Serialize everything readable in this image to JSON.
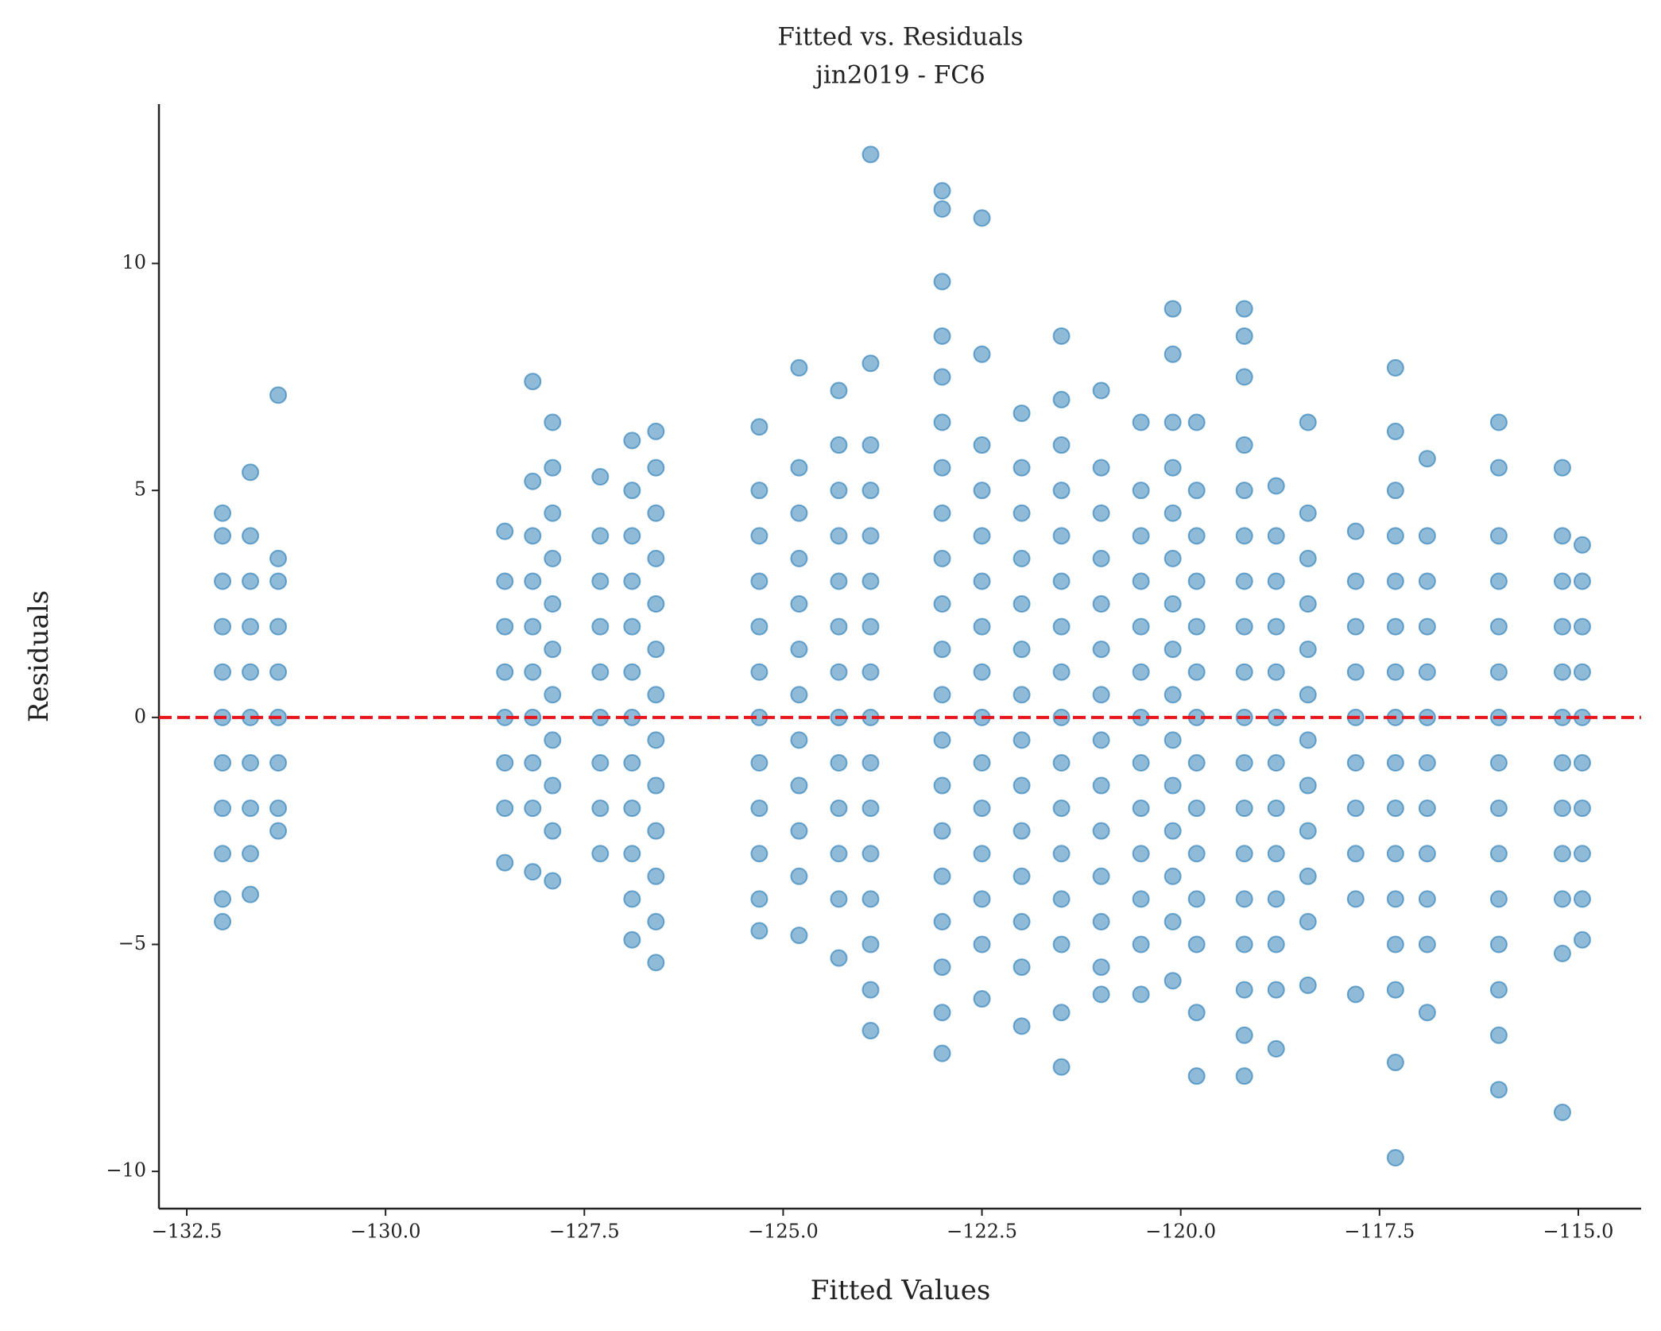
{
  "chart_data": {
    "type": "scatter",
    "title": "Fitted vs. Residuals",
    "subtitle": "jin2019 - FC6",
    "x_label": "Fitted Values",
    "y_label": "Residuals",
    "color": "#1f77b4",
    "xlim": [
      -132.85,
      -114.21
    ],
    "ylim": [
      -10.82,
      13.51
    ],
    "xticks": [
      {
        "value": -132.5,
        "label": "−132.5"
      },
      {
        "value": -130.0,
        "label": "−130.0"
      },
      {
        "value": -127.5,
        "label": "−127.5"
      },
      {
        "value": -125.0,
        "label": "−125.0"
      },
      {
        "value": -122.5,
        "label": "−122.5"
      },
      {
        "value": -120.0,
        "label": "−120.0"
      },
      {
        "value": -117.5,
        "label": "−117.5"
      },
      {
        "value": -115.0,
        "label": "−115.0"
      }
    ],
    "yticks": [
      {
        "value": -10,
        "label": "−10"
      },
      {
        "value": -5,
        "label": "−5"
      },
      0,
      5,
      10
    ],
    "reference_line": {
      "y": 0,
      "color": "#e8141c"
    },
    "x": [
      -132.05,
      -132.05,
      -132.05,
      -132.05,
      -132.05,
      -132.05,
      -132.05,
      -132.05,
      -132.05,
      -132.05,
      -132.05,
      -131.7,
      -131.7,
      -131.7,
      -131.7,
      -131.7,
      -131.7,
      -131.7,
      -131.7,
      -131.7,
      -131.7,
      -131.35,
      -131.35,
      -131.35,
      -131.35,
      -131.35,
      -131.35,
      -131.35,
      -131.35,
      -131.35,
      -128.5,
      -128.5,
      -128.5,
      -128.5,
      -128.5,
      -128.5,
      -128.5,
      -128.5,
      -128.15,
      -128.15,
      -128.15,
      -128.15,
      -128.15,
      -128.15,
      -128.15,
      -128.15,
      -128.15,
      -128.15,
      -127.9,
      -127.9,
      -127.9,
      -127.9,
      -127.9,
      -127.9,
      -127.9,
      -127.9,
      -127.9,
      -127.9,
      -127.9,
      -127.3,
      -127.3,
      -127.3,
      -127.3,
      -127.3,
      -127.3,
      -127.3,
      -127.3,
      -127.3,
      -126.9,
      -126.9,
      -126.9,
      -126.9,
      -126.9,
      -126.9,
      -126.9,
      -126.9,
      -126.9,
      -126.9,
      -126.9,
      -126.9,
      -126.6,
      -126.6,
      -126.6,
      -126.6,
      -126.6,
      -126.6,
      -126.6,
      -126.6,
      -126.6,
      -126.6,
      -126.6,
      -126.6,
      -126.6,
      -125.3,
      -125.3,
      -125.3,
      -125.3,
      -125.3,
      -125.3,
      -125.3,
      -125.3,
      -125.3,
      -125.3,
      -125.3,
      -125.3,
      -124.8,
      -124.8,
      -124.8,
      -124.8,
      -124.8,
      -124.8,
      -124.8,
      -124.8,
      -124.8,
      -124.8,
      -124.8,
      -124.8,
      -124.3,
      -124.3,
      -124.3,
      -124.3,
      -124.3,
      -124.3,
      -124.3,
      -124.3,
      -124.3,
      -124.3,
      -124.3,
      -124.3,
      -124.3,
      -123.9,
      -123.9,
      -123.9,
      -123.9,
      -123.9,
      -123.9,
      -123.9,
      -123.9,
      -123.9,
      -123.9,
      -123.9,
      -123.9,
      -123.9,
      -123.9,
      -123.9,
      -123.9,
      -123.0,
      -123.0,
      -123.0,
      -123.0,
      -123.0,
      -123.0,
      -123.0,
      -123.0,
      -123.0,
      -123.0,
      -123.0,
      -123.0,
      -123.0,
      -123.0,
      -123.0,
      -123.0,
      -123.0,
      -123.0,
      -123.0,
      -123.0,
      -122.5,
      -122.5,
      -122.5,
      -122.5,
      -122.5,
      -122.5,
      -122.5,
      -122.5,
      -122.5,
      -122.5,
      -122.5,
      -122.5,
      -122.5,
      -122.5,
      -122.5,
      -122.0,
      -122.0,
      -122.0,
      -122.0,
      -122.0,
      -122.0,
      -122.0,
      -122.0,
      -122.0,
      -122.0,
      -122.0,
      -122.0,
      -122.0,
      -122.0,
      -121.5,
      -121.5,
      -121.5,
      -121.5,
      -121.5,
      -121.5,
      -121.5,
      -121.5,
      -121.5,
      -121.5,
      -121.5,
      -121.5,
      -121.5,
      -121.5,
      -121.5,
      -121.5,
      -121.0,
      -121.0,
      -121.0,
      -121.0,
      -121.0,
      -121.0,
      -121.0,
      -121.0,
      -121.0,
      -121.0,
      -121.0,
      -121.0,
      -121.0,
      -121.0,
      -120.5,
      -120.5,
      -120.5,
      -120.5,
      -120.5,
      -120.5,
      -120.5,
      -120.5,
      -120.5,
      -120.5,
      -120.5,
      -120.5,
      -120.5,
      -120.1,
      -120.1,
      -120.1,
      -120.1,
      -120.1,
      -120.1,
      -120.1,
      -120.1,
      -120.1,
      -120.1,
      -120.1,
      -120.1,
      -120.1,
      -120.1,
      -120.1,
      -119.8,
      -119.8,
      -119.8,
      -119.8,
      -119.8,
      -119.8,
      -119.8,
      -119.8,
      -119.8,
      -119.8,
      -119.8,
      -119.8,
      -119.8,
      -119.8,
      -119.2,
      -119.2,
      -119.2,
      -119.2,
      -119.2,
      -119.2,
      -119.2,
      -119.2,
      -119.2,
      -119.2,
      -119.2,
      -119.2,
      -119.2,
      -119.2,
      -119.2,
      -119.2,
      -119.2,
      -119.2,
      -118.8,
      -118.8,
      -118.8,
      -118.8,
      -118.8,
      -118.8,
      -118.8,
      -118.8,
      -118.8,
      -118.8,
      -118.8,
      -118.8,
      -118.8,
      -118.4,
      -118.4,
      -118.4,
      -118.4,
      -118.4,
      -118.4,
      -118.4,
      -118.4,
      -118.4,
      -118.4,
      -118.4,
      -118.4,
      -117.8,
      -117.8,
      -117.8,
      -117.8,
      -117.8,
      -117.8,
      -117.8,
      -117.8,
      -117.8,
      -117.8,
      -117.3,
      -117.3,
      -117.3,
      -117.3,
      -117.3,
      -117.3,
      -117.3,
      -117.3,
      -117.3,
      -117.3,
      -117.3,
      -117.3,
      -117.3,
      -117.3,
      -117.3,
      -117.3,
      -116.9,
      -116.9,
      -116.9,
      -116.9,
      -116.9,
      -116.9,
      -116.9,
      -116.9,
      -116.9,
      -116.9,
      -116.9,
      -116.9,
      -116.0,
      -116.0,
      -116.0,
      -116.0,
      -116.0,
      -116.0,
      -116.0,
      -116.0,
      -116.0,
      -116.0,
      -116.0,
      -116.0,
      -116.0,
      -116.0,
      -116.0,
      -115.2,
      -115.2,
      -115.2,
      -115.2,
      -115.2,
      -115.2,
      -115.2,
      -115.2,
      -115.2,
      -115.2,
      -115.2,
      -115.2,
      -114.95,
      -114.95,
      -114.95,
      -114.95,
      -114.95,
      -114.95,
      -114.95,
      -114.95,
      -114.95,
      -114.95
    ],
    "values": [
      -4.5,
      -4,
      -3,
      -2,
      -1,
      0,
      1,
      2,
      3,
      4,
      4.5,
      -3.9,
      -3,
      -2,
      -1,
      0,
      1,
      2,
      3,
      4,
      5.4,
      -2.5,
      -2,
      -1,
      0,
      1,
      2,
      3,
      3.5,
      7.1,
      -3.2,
      -2,
      -1,
      0,
      1,
      2,
      3,
      4.1,
      -3.4,
      -2,
      -1,
      0,
      1,
      2,
      3,
      4,
      5.2,
      7.4,
      -3.6,
      -2.5,
      -1.5,
      -0.5,
      0.5,
      1.5,
      2.5,
      3.5,
      4.5,
      5.5,
      6.5,
      -3,
      -2,
      -1,
      0,
      1,
      2,
      3,
      4,
      5.3,
      -4.9,
      -4,
      -3,
      -2,
      -1,
      0,
      1,
      2,
      3,
      4,
      5,
      6.1,
      -5.4,
      -4.5,
      -3.5,
      -2.5,
      -1.5,
      -0.5,
      0.5,
      1.5,
      2.5,
      3.5,
      4.5,
      5.5,
      6.3,
      -4.7,
      -4,
      -3,
      -2,
      -1,
      0,
      1,
      2,
      3,
      4,
      5,
      6.4,
      -4.8,
      -3.5,
      -2.5,
      -1.5,
      -0.5,
      0.5,
      1.5,
      2.5,
      3.5,
      4.5,
      5.5,
      7.7,
      -5.3,
      -4,
      -3,
      -2,
      -1,
      0,
      1,
      2,
      3,
      4,
      5,
      6,
      7.2,
      -6.9,
      -6,
      -5,
      -4,
      -3,
      -2,
      -1,
      0,
      1,
      2,
      3,
      4,
      5,
      6,
      7.8,
      12.4,
      -7.4,
      -6.5,
      -5.5,
      -4.5,
      -3.5,
      -2.5,
      -1.5,
      -0.5,
      0.5,
      1.5,
      2.5,
      3.5,
      4.5,
      5.5,
      6.5,
      7.5,
      8.4,
      9.6,
      11.2,
      11.6,
      -6.2,
      -5,
      -4,
      -3,
      -2,
      -1,
      0,
      1,
      2,
      3,
      4,
      5,
      6,
      8,
      11,
      -6.8,
      -5.5,
      -4.5,
      -3.5,
      -2.5,
      -1.5,
      -0.5,
      0.5,
      1.5,
      2.5,
      3.5,
      4.5,
      5.5,
      6.7,
      -7.7,
      -6.5,
      -5,
      -4,
      -3,
      -2,
      -1,
      0,
      1,
      2,
      3,
      4,
      5,
      6,
      7,
      8.4,
      -6.1,
      -5.5,
      -4.5,
      -3.5,
      -2.5,
      -1.5,
      -0.5,
      0.5,
      1.5,
      2.5,
      3.5,
      4.5,
      5.5,
      7.2,
      -6.1,
      -5,
      -4,
      -3,
      -2,
      -1,
      0,
      1,
      2,
      3,
      4,
      5,
      6.5,
      -5.8,
      -4.5,
      -3.5,
      -2.5,
      -1.5,
      -0.5,
      0.5,
      1.5,
      2.5,
      3.5,
      4.5,
      5.5,
      6.5,
      8,
      9,
      -7.9,
      -6.5,
      -5,
      -4,
      -3,
      -2,
      -1,
      0,
      1,
      2,
      3,
      4,
      5,
      6.5,
      -7.9,
      -7,
      -6,
      -5,
      -4,
      -3,
      -2,
      -1,
      0,
      1,
      2,
      3,
      4,
      5,
      6,
      7.5,
      8.4,
      9,
      -7.3,
      -6,
      -5,
      -4,
      -3,
      -2,
      -1,
      0,
      1,
      2,
      3,
      4,
      5.1,
      -5.9,
      -4.5,
      -3.5,
      -2.5,
      -1.5,
      -0.5,
      0.5,
      1.5,
      2.5,
      3.5,
      4.5,
      6.5,
      -6.1,
      -4,
      -3,
      -2,
      -1,
      0,
      1,
      2,
      3,
      4.1,
      -9.7,
      -7.6,
      -6,
      -5,
      -4,
      -3,
      -2,
      -1,
      0,
      1,
      2,
      3,
      4,
      5,
      6.3,
      7.7,
      -6.5,
      -5,
      -4,
      -3,
      -2,
      -1,
      0,
      1,
      2,
      3,
      4,
      5.7,
      -8.2,
      -7,
      -6,
      -5,
      -4,
      -3,
      -2,
      -1,
      0,
      1,
      2,
      3,
      4,
      5.5,
      6.5,
      -8.7,
      -5.2,
      -4,
      -3,
      -2,
      -1,
      0,
      1,
      2,
      3,
      4,
      5.5,
      -4.9,
      -4,
      -3,
      -2,
      -1,
      0,
      1,
      2,
      3,
      3.8
    ]
  }
}
